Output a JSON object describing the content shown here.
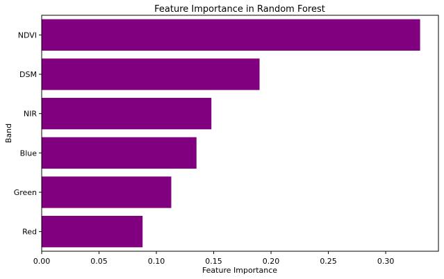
{
  "chart_data": {
    "type": "bar",
    "orientation": "horizontal",
    "title": "Feature Importance in Random Forest",
    "xlabel": "Feature Importance",
    "ylabel": "Band",
    "categories": [
      "Red",
      "Green",
      "Blue",
      "NIR",
      "DSM",
      "NDVI"
    ],
    "values": [
      0.088,
      0.113,
      0.135,
      0.148,
      0.19,
      0.33
    ],
    "xlim": [
      0,
      0.346
    ],
    "xticks": [
      "0.00",
      "0.05",
      "0.10",
      "0.15",
      "0.20",
      "0.25",
      "0.30"
    ],
    "bar_color": "#800080",
    "grid": false
  }
}
